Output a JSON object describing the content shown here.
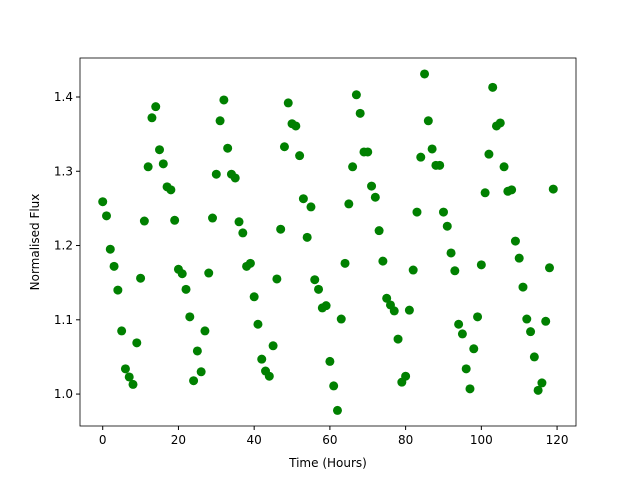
{
  "chart_data": {
    "type": "scatter",
    "xlabel": "Time (Hours)",
    "ylabel": "Normalised Flux",
    "color": "green",
    "xlim": [
      -6,
      125
    ],
    "ylim": [
      0.957,
      1.4525
    ],
    "xticks": [
      0,
      20,
      40,
      60,
      80,
      100,
      120
    ],
    "yticks": [
      {
        "value": 1,
        "label": "1.0"
      },
      1.1,
      1.2,
      1.3,
      1.4
    ],
    "x": [
      0,
      1,
      2,
      3,
      4,
      5,
      6,
      7,
      8,
      9,
      10,
      11,
      12,
      13,
      14,
      15,
      16,
      17,
      18,
      19,
      20,
      21,
      22,
      23,
      24,
      25,
      26,
      27,
      28,
      29,
      30,
      31,
      32,
      33,
      34,
      35,
      36,
      37,
      38,
      39,
      40,
      41,
      42,
      43,
      44,
      45,
      46,
      47,
      48,
      49,
      50,
      51,
      52,
      53,
      54,
      55,
      56,
      57,
      58,
      59,
      60,
      61,
      62,
      63,
      64,
      65,
      66,
      67,
      68,
      69,
      70,
      71,
      72,
      73,
      74,
      75,
      76,
      77,
      78,
      79,
      80,
      81,
      82,
      83,
      84,
      85,
      86,
      87,
      88,
      89,
      90,
      91,
      92,
      93,
      94,
      95,
      96,
      97,
      98,
      99,
      100,
      101,
      102,
      103,
      104,
      105,
      106,
      107,
      108,
      109,
      110,
      111,
      112,
      113,
      114,
      115,
      116,
      117,
      118,
      119
    ],
    "values": [
      1.259,
      1.24,
      1.195,
      1.172,
      1.14,
      1.085,
      1.034,
      1.023,
      1.013,
      1.069,
      1.156,
      1.233,
      1.306,
      1.372,
      1.387,
      1.329,
      1.31,
      1.279,
      1.275,
      1.234,
      1.168,
      1.162,
      1.141,
      1.104,
      1.018,
      1.058,
      1.03,
      1.085,
      1.163,
      1.237,
      1.296,
      1.368,
      1.396,
      1.331,
      1.296,
      1.291,
      1.232,
      1.217,
      1.172,
      1.176,
      1.131,
      1.094,
      1.047,
      1.031,
      1.024,
      1.065,
      1.155,
      1.222,
      1.333,
      1.392,
      1.364,
      1.361,
      1.321,
      1.263,
      1.211,
      1.252,
      1.154,
      1.141,
      1.116,
      1.119,
      1.044,
      1.011,
      0.978,
      1.101,
      1.176,
      1.256,
      1.306,
      1.403,
      1.378,
      1.326,
      1.326,
      1.28,
      1.265,
      1.22,
      1.179,
      1.129,
      1.12,
      1.112,
      1.074,
      1.016,
      1.024,
      1.113,
      1.167,
      1.245,
      1.319,
      1.431,
      1.368,
      1.33,
      1.308,
      1.308,
      1.245,
      1.226,
      1.19,
      1.166,
      1.094,
      1.081,
      1.034,
      1.007,
      1.061,
      1.104,
      1.174,
      1.271,
      1.323,
      1.413,
      1.361,
      1.365,
      1.306,
      1.273,
      1.275,
      1.206,
      1.183,
      1.144,
      1.101,
      1.084,
      1.05,
      1.005,
      1.015,
      1.098,
      1.17,
      1.276
    ]
  }
}
